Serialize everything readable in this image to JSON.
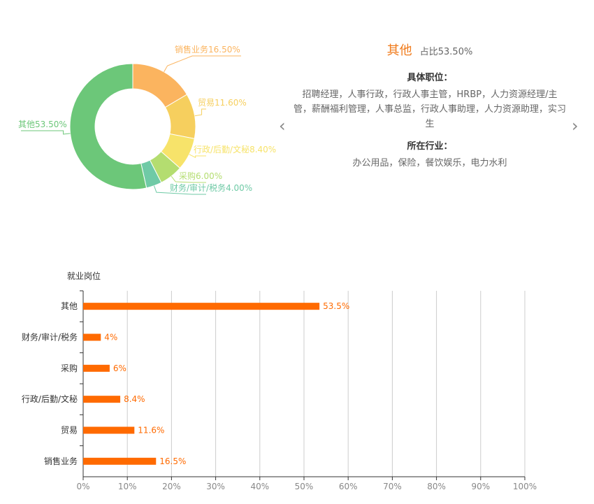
{
  "chart_data": [
    {
      "type": "pie",
      "variant": "donut",
      "slices": [
        {
          "label": "销售业务16.50%",
          "category": "销售业务",
          "value": 16.5,
          "color": "#fbb45f"
        },
        {
          "label": "贸易11.60%",
          "category": "贸易",
          "value": 11.6,
          "color": "#f6cf5e"
        },
        {
          "label": "行政/后勤/文秘8.40%",
          "category": "行政/后勤/文秘",
          "value": 8.4,
          "color": "#f7e36a"
        },
        {
          "label": "采购6.00%",
          "category": "采购",
          "value": 6.0,
          "color": "#b4dd70"
        },
        {
          "label": "财务/审计/税务4.00%",
          "category": "财务/审计/税务",
          "value": 4.0,
          "color": "#6fcaa6"
        },
        {
          "label": "其他53.50%",
          "category": "其他",
          "value": 53.5,
          "color": "#6cc779"
        }
      ]
    },
    {
      "type": "bar",
      "orientation": "horizontal",
      "ylabel": "就业岗位",
      "categories": [
        "其他",
        "财务/审计/税务",
        "采购",
        "行政/后勤/文秘",
        "贸易",
        "销售业务"
      ],
      "values": [
        53.5,
        4,
        6,
        8.4,
        11.6,
        16.5
      ],
      "value_labels": [
        "53.5%",
        "4%",
        "6%",
        "8.4%",
        "11.6%",
        "16.5%"
      ],
      "xlim": [
        0,
        100
      ],
      "xticks": [
        "0%",
        "10%",
        "20%",
        "30%",
        "40%",
        "50%",
        "60%",
        "70%",
        "80%",
        "90%",
        "100%"
      ],
      "grid": true,
      "bar_color": "#ff6a00"
    }
  ],
  "detail": {
    "name": "其他",
    "share": "占比53.50%",
    "positions_title": "具体职位：",
    "positions": "招聘经理，人事行政，行政人事主管，HRBP，人力资源经理/主管，薪酬福利管理，人事总监，行政人事助理，人力资源助理，实习生",
    "industry_title": "所在行业：",
    "industries": "办公用品，保险，餐饮娱乐，电力水利"
  },
  "nav": {
    "prev": "‹",
    "next": "›"
  }
}
